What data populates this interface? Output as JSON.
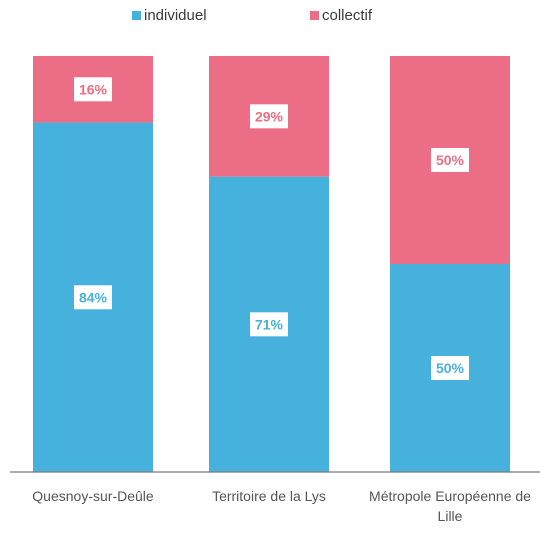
{
  "chart_data": {
    "type": "bar",
    "stacked": true,
    "percent": true,
    "categories": [
      [
        "Quesnoy-sur-Deûle"
      ],
      [
        "Territoire de la Lys"
      ],
      [
        "Métropole Européenne de",
        "Lille"
      ]
    ],
    "series": [
      {
        "name": "individuel",
        "color": "#45b1dc",
        "values": [
          84,
          71,
          50
        ],
        "labels": [
          "84%",
          "71%",
          "50%"
        ]
      },
      {
        "name": "collectif",
        "color": "#ec6e86",
        "values": [
          16,
          29,
          50
        ],
        "labels": [
          "16%",
          "29%",
          "50%"
        ]
      }
    ],
    "ylim": [
      0,
      100
    ],
    "legend_position": "top",
    "grid": false,
    "title": "",
    "xlabel": "",
    "ylabel": ""
  }
}
